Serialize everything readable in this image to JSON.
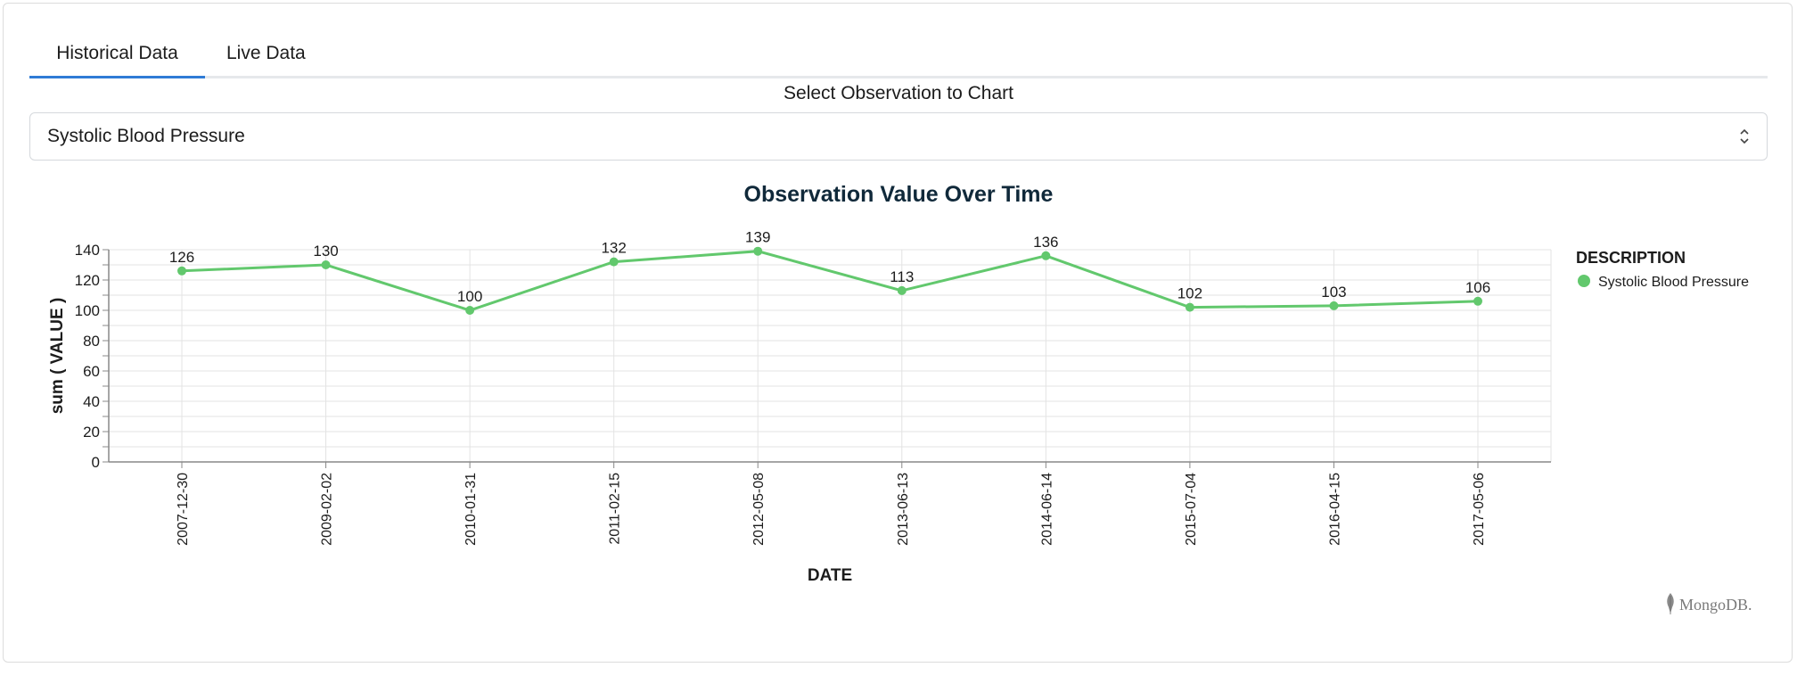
{
  "tabs": [
    {
      "label": "Historical Data"
    },
    {
      "label": "Live Data"
    }
  ],
  "select": {
    "label": "Select Observation to Chart",
    "value": "Systolic Blood Pressure"
  },
  "chart_data": {
    "type": "line",
    "title": "Observation Value Over Time",
    "xlabel": "DATE",
    "ylabel": "sum ( VALUE )",
    "ylim": [
      0,
      140
    ],
    "yticks": [
      0,
      20,
      40,
      60,
      80,
      100,
      120,
      140
    ],
    "grid": true,
    "legend_position": "right",
    "legend_title": "DESCRIPTION",
    "categories": [
      "2007-12-30",
      "2009-02-02",
      "2010-01-31",
      "2011-02-15",
      "2012-05-08",
      "2013-06-13",
      "2014-06-14",
      "2015-07-04",
      "2016-04-15",
      "2017-05-06"
    ],
    "series": [
      {
        "name": "Systolic Blood Pressure",
        "color": "#62c86d",
        "values": [
          126,
          130,
          100,
          132,
          139,
          113,
          136,
          102,
          103,
          106
        ]
      }
    ]
  },
  "brand": {
    "text": "MongoDB."
  },
  "icons": {
    "select_chevron": "chevron-up-down-icon",
    "brand_logo": "mongodb-leaf-icon"
  }
}
